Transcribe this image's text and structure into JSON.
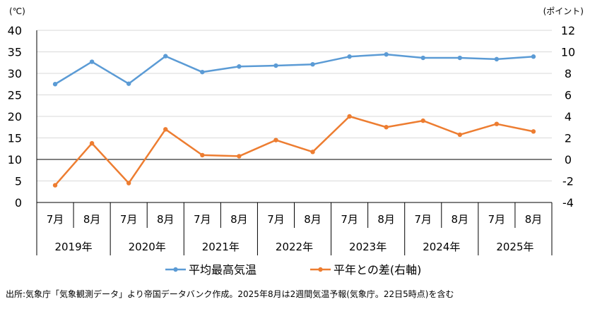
{
  "chart_data": {
    "type": "line",
    "left_unit": "(℃)",
    "right_unit": "(ポイント)",
    "left_ticks": [
      0,
      5,
      10,
      15,
      20,
      25,
      30,
      35,
      40
    ],
    "right_ticks": [
      -4,
      -2,
      0,
      2,
      4,
      6,
      8,
      10,
      12
    ],
    "left_ylim": [
      0,
      40
    ],
    "right_ylim": [
      -4,
      12
    ],
    "months": [
      "7月",
      "8月",
      "7月",
      "8月",
      "7月",
      "8月",
      "7月",
      "8月",
      "7月",
      "8月",
      "7月",
      "8月",
      "7月",
      "8月"
    ],
    "years": [
      "2019年",
      "2020年",
      "2021年",
      "2022年",
      "2023年",
      "2024年",
      "2025年"
    ],
    "series": [
      {
        "name": "平均最高気温",
        "axis": "left",
        "color": "#5b9bd5",
        "values": [
          27.5,
          32.7,
          27.6,
          34.0,
          30.3,
          31.6,
          31.8,
          32.1,
          33.9,
          34.4,
          33.6,
          33.6,
          33.3,
          33.9
        ]
      },
      {
        "name": "平年との差(右軸)",
        "axis": "right",
        "color": "#ed7d31",
        "values": [
          -2.4,
          1.5,
          -2.2,
          2.8,
          0.4,
          0.3,
          1.8,
          0.7,
          4.0,
          3.0,
          3.6,
          2.3,
          3.3,
          2.6
        ]
      }
    ],
    "grid": "horizontal",
    "legend_position": "bottom"
  },
  "source_note": "出所:気象庁「気象観測データ」より帝国データバンク作成。2025年8月は2週間気温予報(気象庁。22日5時点)を含む"
}
